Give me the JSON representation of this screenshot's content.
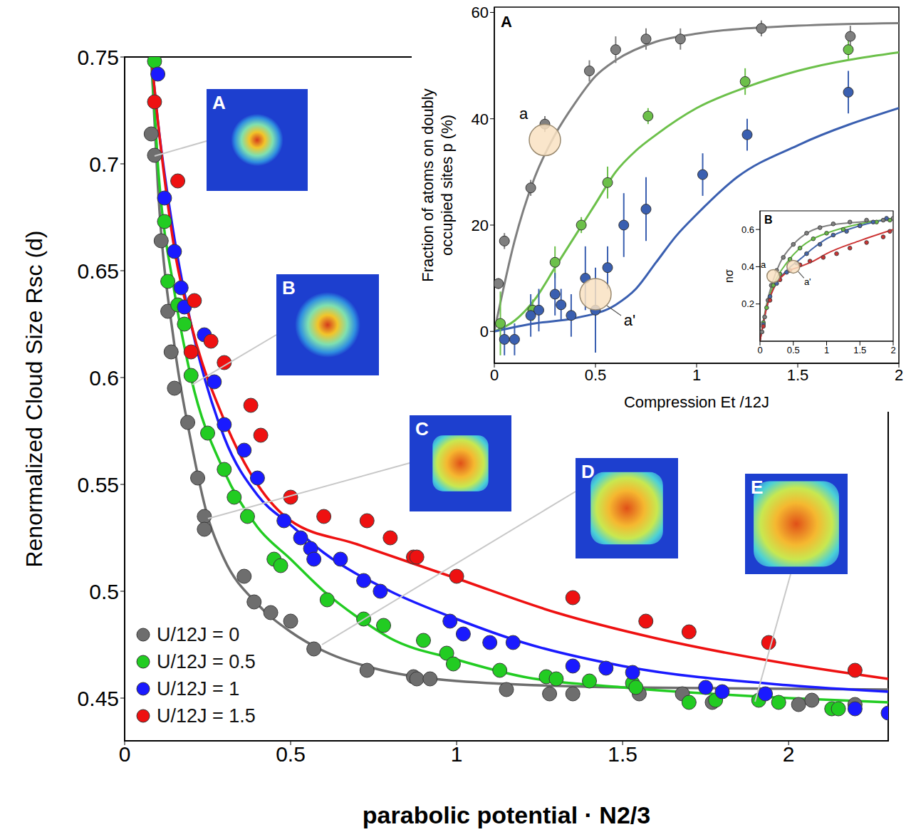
{
  "chart_data": [
    {
      "type": "scatter",
      "x_label": "parabolic potential · N2/3",
      "y_label": "Renormalized Cloud Size Rsc (d)",
      "xlim": [
        0,
        2.3
      ],
      "ylim": [
        0.43,
        0.75
      ],
      "xticks": [
        0,
        0.5,
        1,
        1.5,
        2
      ],
      "yticks": [
        0.45,
        0.5,
        0.55,
        0.6,
        0.65,
        0.7,
        0.75
      ],
      "legend": "lower left",
      "annotations": [
        "A",
        "B",
        "C",
        "D",
        "E"
      ],
      "series": [
        {
          "name": "U/12J = 0",
          "color": "#6e6e6e",
          "points": {
            "x": [
              0.08,
              0.09,
              0.11,
              0.13,
              0.14,
              0.15,
              0.19,
              0.22,
              0.24,
              0.24,
              0.36,
              0.39,
              0.44,
              0.5,
              0.57,
              0.73,
              0.87,
              0.88,
              0.92,
              1.15,
              1.28,
              1.35,
              1.55,
              1.68,
              1.77,
              2.03,
              2.07,
              2.2
            ],
            "y": [
              0.714,
              0.704,
              0.664,
              0.631,
              0.612,
              0.595,
              0.579,
              0.553,
              0.535,
              0.529,
              0.507,
              0.495,
              0.49,
              0.486,
              0.473,
              0.463,
              0.46,
              0.459,
              0.459,
              0.454,
              0.452,
              0.452,
              0.452,
              0.452,
              0.448,
              0.447,
              0.449,
              0.447
            ]
          },
          "curve": {
            "x": [
              0.08,
              0.1,
              0.15,
              0.2,
              0.25,
              0.3,
              0.4,
              0.5,
              0.6,
              0.75,
              1.0,
              1.5,
              2.3
            ],
            "y": [
              0.75,
              0.69,
              0.615,
              0.57,
              0.535,
              0.515,
              0.494,
              0.481,
              0.472,
              0.464,
              0.458,
              0.455,
              0.454
            ]
          }
        },
        {
          "name": "U/12J = 0.5",
          "color": "#22cc22",
          "points": {
            "x": [
              0.09,
              0.12,
              0.13,
              0.16,
              0.18,
              0.2,
              0.25,
              0.3,
              0.33,
              0.37,
              0.45,
              0.47,
              0.61,
              0.72,
              0.78,
              0.9,
              0.97,
              0.99,
              1.13,
              1.27,
              1.3,
              1.4,
              1.53,
              1.54,
              1.7,
              1.78,
              1.91,
              1.97,
              2.13,
              2.15
            ],
            "y": [
              0.748,
              0.673,
              0.645,
              0.634,
              0.625,
              0.601,
              0.574,
              0.557,
              0.544,
              0.535,
              0.515,
              0.512,
              0.496,
              0.487,
              0.484,
              0.477,
              0.471,
              0.466,
              0.463,
              0.46,
              0.459,
              0.458,
              0.457,
              0.455,
              0.448,
              0.449,
              0.449,
              0.448,
              0.445,
              0.445
            ]
          },
          "curve": {
            "x": [
              0.08,
              0.1,
              0.15,
              0.2,
              0.3,
              0.4,
              0.5,
              0.6,
              0.7,
              0.8,
              1.0,
              1.2,
              1.5,
              2.0,
              2.3
            ],
            "y": [
              0.75,
              0.7,
              0.64,
              0.6,
              0.556,
              0.53,
              0.515,
              0.5,
              0.488,
              0.478,
              0.468,
              0.46,
              0.455,
              0.45,
              0.448
            ]
          }
        },
        {
          "name": "U/12J = 1",
          "color": "#1a1aff",
          "points": {
            "x": [
              0.1,
              0.12,
              0.15,
              0.17,
              0.18,
              0.24,
              0.27,
              0.3,
              0.36,
              0.4,
              0.48,
              0.53,
              0.56,
              0.57,
              0.65,
              0.72,
              0.77,
              0.98,
              1.02,
              1.1,
              1.17,
              1.35,
              1.45,
              1.53,
              1.75,
              1.8,
              1.93,
              2.2,
              2.3
            ],
            "y": [
              0.742,
              0.684,
              0.659,
              0.642,
              0.633,
              0.62,
              0.598,
              0.578,
              0.566,
              0.553,
              0.533,
              0.525,
              0.52,
              0.515,
              0.515,
              0.505,
              0.5,
              0.486,
              0.48,
              0.476,
              0.476,
              0.465,
              0.464,
              0.462,
              0.455,
              0.453,
              0.452,
              0.445,
              0.443
            ]
          },
          "curve": {
            "x": [
              0.08,
              0.1,
              0.15,
              0.2,
              0.3,
              0.4,
              0.5,
              0.6,
              0.8,
              1.0,
              1.2,
              1.5,
              2.0,
              2.3
            ],
            "y": [
              0.75,
              0.72,
              0.665,
              0.625,
              0.572,
              0.545,
              0.531,
              0.518,
              0.5,
              0.487,
              0.476,
              0.465,
              0.456,
              0.453
            ]
          }
        },
        {
          "name": "U/12J = 1.5",
          "color": "#ee1111",
          "points": {
            "x": [
              0.09,
              0.16,
              0.2,
              0.21,
              0.26,
              0.3,
              0.38,
              0.41,
              0.5,
              0.6,
              0.73,
              0.8,
              0.87,
              0.88,
              1.0,
              1.35,
              1.57,
              1.7,
              1.94,
              2.2
            ],
            "y": [
              0.729,
              0.692,
              0.612,
              0.636,
              0.617,
              0.607,
              0.587,
              0.573,
              0.544,
              0.535,
              0.533,
              0.525,
              0.516,
              0.516,
              0.507,
              0.497,
              0.486,
              0.481,
              0.476,
              0.463
            ]
          },
          "curve": {
            "x": [
              0.08,
              0.1,
              0.15,
              0.2,
              0.3,
              0.4,
              0.5,
              0.7,
              1.0,
              1.3,
              1.6,
              2.0,
              2.3
            ],
            "y": [
              0.75,
              0.72,
              0.66,
              0.625,
              0.58,
              0.55,
              0.533,
              0.522,
              0.506,
              0.49,
              0.478,
              0.466,
              0.459
            ]
          }
        }
      ]
    },
    {
      "type": "scatter",
      "panel": "A",
      "x_label": "Compression Et /12J",
      "y_label": "Fraction of atoms on doubly occupied sites p (%)",
      "xlim": [
        0,
        2
      ],
      "ylim": [
        -6,
        61
      ],
      "xticks": [
        0,
        0.5,
        1,
        1.5,
        2
      ],
      "yticks": [
        0,
        20,
        40,
        60
      ],
      "annotations": [
        {
          "text": "a",
          "x": 0.25,
          "y": 36
        },
        {
          "text": "a'",
          "x": 0.5,
          "y": 7
        }
      ],
      "series": [
        {
          "color": "#7f7f7f",
          "points": {
            "x": [
              0.02,
              0.05,
              0.18,
              0.25,
              0.47,
              0.6,
              0.75,
              0.92,
              1.32,
              1.76
            ],
            "y": [
              9,
              17,
              27,
              39,
              49,
              53,
              55,
              55,
              57,
              55.5
            ],
            "errors": [
              1,
              1.5,
              1.5,
              1.5,
              2,
              2.5,
              2,
              2,
              1.5,
              2
            ]
          },
          "curve": {
            "x": [
              0,
              0.1,
              0.2,
              0.3,
              0.4,
              0.5,
              0.6,
              0.8,
              1.0,
              1.5,
              2
            ],
            "y": [
              0,
              17,
              29,
              37,
              43,
              48,
              51,
              54.5,
              56,
              57.5,
              58
            ]
          }
        },
        {
          "color": "#6cc04a",
          "points": {
            "x": [
              0.03,
              0.19,
              0.3,
              0.43,
              0.56,
              0.76,
              1.24,
              1.75
            ],
            "y": [
              1.5,
              4,
              13,
              20,
              28,
              40.5,
              47,
              53
            ],
            "errors": [
              6,
              2,
              3,
              1.5,
              3,
              1.5,
              2.5,
              2
            ]
          },
          "curve": {
            "x": [
              0,
              0.1,
              0.2,
              0.3,
              0.4,
              0.5,
              0.6,
              0.7,
              0.8,
              1.0,
              1.25,
              1.5,
              2
            ],
            "y": [
              0,
              2,
              6,
              12,
              18,
              24,
              30,
              34,
              37,
              42,
              46,
              49,
              52.5
            ]
          }
        },
        {
          "color": "#3a5fb0",
          "points": {
            "x": [
              0.05,
              0.1,
              0.18,
              0.22,
              0.3,
              0.33,
              0.38,
              0.45,
              0.5,
              0.56,
              0.64,
              0.75,
              1.03,
              1.25,
              1.75
            ],
            "y": [
              -1.5,
              -1.5,
              3,
              4,
              7,
              5,
              3,
              10,
              4,
              12,
              20,
              23,
              29.5,
              37,
              45
            ],
            "errors": [
              3,
              3,
              4,
              4,
              4,
              3,
              4,
              6,
              8,
              4,
              6,
              6,
              4,
              3,
              4
            ]
          },
          "curve": {
            "x": [
              0,
              0.2,
              0.4,
              0.6,
              0.7,
              0.8,
              0.9,
              1.0,
              1.2,
              1.5,
              2
            ],
            "y": [
              0,
              1.5,
              2.5,
              5,
              8,
              13,
              18,
              22,
              29,
              35,
              42
            ]
          }
        }
      ]
    },
    {
      "type": "scatter",
      "panel": "B",
      "y_label": "nσ",
      "xlim": [
        0,
        2
      ],
      "ylim": [
        0,
        0.7
      ],
      "xticks": [
        0,
        0.5,
        1,
        1.5,
        2
      ],
      "yticks": [
        0.2,
        0.4,
        0.6
      ],
      "annotations": [
        {
          "text": "a",
          "x": 0.2,
          "y": 0.35
        },
        {
          "text": "a'",
          "x": 0.5,
          "y": 0.4
        }
      ],
      "series": [
        {
          "color": "#808080",
          "points": {
            "x": [
              0.03,
              0.07,
              0.12,
              0.17,
              0.25,
              0.35,
              0.5,
              0.7,
              0.9,
              1.1,
              1.35,
              1.6,
              1.85,
              2.0
            ],
            "y": [
              0.05,
              0.13,
              0.22,
              0.3,
              0.38,
              0.45,
              0.52,
              0.58,
              0.61,
              0.63,
              0.64,
              0.65,
              0.65,
              0.66
            ]
          },
          "curve": {
            "x": [
              0,
              0.1,
              0.2,
              0.3,
              0.5,
              0.75,
              1,
              1.5,
              2
            ],
            "y": [
              0,
              0.2,
              0.33,
              0.42,
              0.52,
              0.59,
              0.62,
              0.64,
              0.65
            ]
          }
        },
        {
          "color": "#66bb44",
          "points": {
            "x": [
              0.05,
              0.1,
              0.2,
              0.3,
              0.45,
              0.6,
              0.8,
              1.0,
              1.25,
              1.5,
              1.75,
              1.95
            ],
            "y": [
              0.1,
              0.18,
              0.3,
              0.36,
              0.44,
              0.5,
              0.55,
              0.58,
              0.6,
              0.62,
              0.64,
              0.65
            ]
          },
          "curve": {
            "x": [
              0,
              0.1,
              0.2,
              0.4,
              0.6,
              0.8,
              1,
              1.5,
              2
            ],
            "y": [
              0,
              0.19,
              0.3,
              0.42,
              0.5,
              0.55,
              0.58,
              0.63,
              0.66
            ]
          }
        },
        {
          "color": "#4466aa",
          "points": {
            "x": [
              0.05,
              0.15,
              0.25,
              0.4,
              0.55,
              0.7,
              0.9,
              1.1,
              1.3,
              1.5,
              1.7,
              1.9
            ],
            "y": [
              0.09,
              0.24,
              0.31,
              0.37,
              0.42,
              0.47,
              0.52,
              0.57,
              0.59,
              0.62,
              0.64,
              0.66
            ]
          },
          "curve": {
            "x": [
              0,
              0.1,
              0.2,
              0.4,
              0.6,
              0.8,
              1,
              1.5,
              2
            ],
            "y": [
              0,
              0.18,
              0.28,
              0.38,
              0.44,
              0.5,
              0.55,
              0.62,
              0.66
            ]
          }
        },
        {
          "color": "#cc3333",
          "points": {
            "x": [
              0.05,
              0.15,
              0.3,
              0.45,
              0.6,
              0.75,
              0.95,
              1.15,
              1.35,
              1.6,
              1.85,
              1.95
            ],
            "y": [
              0.08,
              0.22,
              0.33,
              0.38,
              0.41,
              0.43,
              0.45,
              0.47,
              0.5,
              0.53,
              0.56,
              0.59
            ]
          },
          "curve": {
            "x": [
              0,
              0.1,
              0.2,
              0.4,
              0.6,
              0.8,
              1,
              1.5,
              2
            ],
            "y": [
              0,
              0.18,
              0.28,
              0.37,
              0.4,
              0.43,
              0.47,
              0.54,
              0.6
            ]
          }
        }
      ]
    }
  ]
}
